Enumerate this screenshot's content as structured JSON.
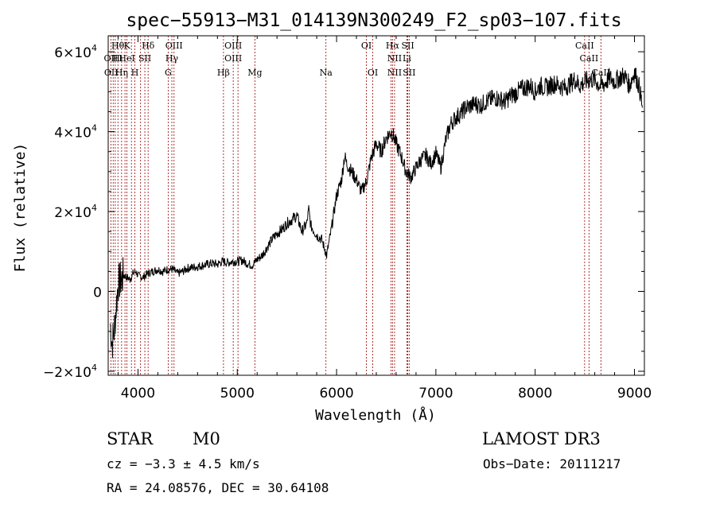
{
  "chart_data": {
    "type": "line",
    "title": "spec−55913−M31_014139N300249_F2_sp03−107.fits",
    "xlabel": "Wavelength (Å)",
    "ylabel": "Flux (relative)",
    "xlim": [
      3700,
      9100
    ],
    "ylim": [
      -21000,
      64000
    ],
    "x_ticks": [
      {
        "value": 4000,
        "label": "4000"
      },
      {
        "value": 5000,
        "label": "5000"
      },
      {
        "value": 6000,
        "label": "6000"
      },
      {
        "value": 7000,
        "label": "7000"
      },
      {
        "value": 8000,
        "label": "8000"
      },
      {
        "value": 9000,
        "label": "9000"
      }
    ],
    "y_ticks": [
      {
        "value": -20000,
        "mant": "−2×10",
        "exp": "4"
      },
      {
        "value": 0,
        "mant": "0",
        "exp": ""
      },
      {
        "value": 20000,
        "mant": "2×10",
        "exp": "4"
      },
      {
        "value": 40000,
        "mant": "4×10",
        "exp": "4"
      },
      {
        "value": 60000,
        "mant": "6×10",
        "exp": "4"
      }
    ],
    "series": [
      {
        "color": "#000000",
        "x": [
          3720,
          3740,
          3760,
          3780,
          3800,
          3830,
          3860,
          3890,
          3920,
          3950,
          3980,
          4000,
          4050,
          4100,
          4150,
          4200,
          4250,
          4300,
          4350,
          4400,
          4450,
          4500,
          4550,
          4600,
          4650,
          4700,
          4750,
          4800,
          4850,
          4900,
          4950,
          5000,
          5050,
          5100,
          5150,
          5200,
          5250,
          5300,
          5350,
          5400,
          5450,
          5500,
          5550,
          5600,
          5650,
          5700,
          5720,
          5740,
          5800,
          5850,
          5900,
          5950,
          6000,
          6050,
          6080,
          6100,
          6150,
          6200,
          6250,
          6300,
          6350,
          6400,
          6450,
          6500,
          6550,
          6580,
          6600,
          6650,
          6700,
          6750,
          6800,
          6850,
          6900,
          6950,
          7000,
          7050,
          7100,
          7150,
          7200,
          7250,
          7300,
          7350,
          7400,
          7450,
          7500,
          7550,
          7600,
          7650,
          7700,
          7750,
          7800,
          7850,
          7900,
          7950,
          8000,
          8050,
          8100,
          8150,
          8200,
          8250,
          8300,
          8350,
          8400,
          8450,
          8500,
          8550,
          8600,
          8650,
          8700,
          8750,
          8800,
          8850,
          8900,
          8950,
          9000,
          9050,
          9080
        ],
        "y": [
          -8000,
          -13000,
          -10000,
          -4000,
          2000,
          3000,
          4000,
          3500,
          3000,
          4500,
          5000,
          4000,
          3500,
          4500,
          5000,
          5500,
          5000,
          5500,
          5500,
          4500,
          5000,
          5800,
          6000,
          6200,
          6500,
          6800,
          7000,
          6800,
          7500,
          7200,
          7500,
          7500,
          7800,
          7000,
          6500,
          8000,
          9000,
          11000,
          13000,
          14500,
          15500,
          17000,
          18000,
          19000,
          15000,
          17000,
          20500,
          16500,
          14000,
          13000,
          9000,
          16000,
          24000,
          28000,
          34000,
          32000,
          30000,
          28000,
          25000,
          27500,
          33500,
          37000,
          35000,
          38500,
          40000,
          38500,
          37000,
          34000,
          30000,
          28500,
          31000,
          33000,
          34000,
          32000,
          34500,
          31000,
          38000,
          42000,
          43500,
          44500,
          46000,
          46500,
          47000,
          46500,
          47500,
          48000,
          48500,
          48000,
          47500,
          49000,
          49500,
          50500,
          51000,
          51500,
          50000,
          51500,
          51000,
          51500,
          52000,
          51500,
          51000,
          52000,
          53000,
          51500,
          52500,
          53000,
          53000,
          51500,
          52000,
          53500,
          52500,
          53500,
          54000,
          51500,
          55000,
          51000,
          46000
        ]
      }
    ],
    "lines": [
      {
        "x": 3727,
        "color": "#990000"
      },
      {
        "x": 3750,
        "color": "#990000"
      },
      {
        "x": 3771,
        "color": "#990000"
      },
      {
        "x": 3798,
        "color": "#990000"
      },
      {
        "x": 3835,
        "color": "#990000"
      },
      {
        "x": 3869,
        "color": "#990000"
      },
      {
        "x": 3889,
        "color": "#990000"
      },
      {
        "x": 3934,
        "color": "#990000"
      },
      {
        "x": 3969,
        "color": "#990000"
      },
      {
        "x": 4026,
        "color": "#990000"
      },
      {
        "x": 4069,
        "color": "#990000"
      },
      {
        "x": 4102,
        "color": "#990000"
      },
      {
        "x": 4304,
        "color": "#990000"
      },
      {
        "x": 4341,
        "color": "#990000"
      },
      {
        "x": 4363,
        "color": "#990000"
      },
      {
        "x": 4861,
        "color": "#990000"
      },
      {
        "x": 4959,
        "color": "#990000"
      },
      {
        "x": 5007,
        "color": "#990000"
      },
      {
        "x": 5177,
        "color": "#990000"
      },
      {
        "x": 5893,
        "color": "#990000"
      },
      {
        "x": 6300,
        "color": "#990000"
      },
      {
        "x": 6364,
        "color": "#990000"
      },
      {
        "x": 6548,
        "color": "#990000"
      },
      {
        "x": 6563,
        "color": "#990000"
      },
      {
        "x": 6584,
        "color": "#990000"
      },
      {
        "x": 6708,
        "color": "#990000"
      },
      {
        "x": 6717,
        "color": "#990000"
      },
      {
        "x": 6731,
        "color": "#990000"
      },
      {
        "x": 8498,
        "color": "#990000"
      },
      {
        "x": 8542,
        "color": "#990000"
      },
      {
        "x": 8662,
        "color": "#990000"
      }
    ],
    "annotations": [
      {
        "x": 3797,
        "row": 1,
        "text": "Hθ"
      },
      {
        "x": 3890,
        "row": 1,
        "text": "K"
      },
      {
        "x": 4102,
        "row": 1,
        "text": "Hδ"
      },
      {
        "x": 4363,
        "row": 1,
        "text": "OIII"
      },
      {
        "x": 4959,
        "row": 1,
        "text": "OIII"
      },
      {
        "x": 6300,
        "row": 1,
        "text": "OI"
      },
      {
        "x": 6563,
        "row": 1,
        "text": "Hα"
      },
      {
        "x": 6717,
        "row": 1,
        "text": "SII"
      },
      {
        "x": 8498,
        "row": 1,
        "text": "CaII"
      },
      {
        "x": 3727,
        "row": 2,
        "text": "OII"
      },
      {
        "x": 3798,
        "row": 2,
        "text": "Hι"
      },
      {
        "x": 3889,
        "row": 2,
        "text": "HeI"
      },
      {
        "x": 4069,
        "row": 2,
        "text": "SII"
      },
      {
        "x": 4341,
        "row": 2,
        "text": "Hγ"
      },
      {
        "x": 4959,
        "row": 2,
        "text": "OIII"
      },
      {
        "x": 6584,
        "row": 2,
        "text": "NII"
      },
      {
        "x": 6708,
        "row": 2,
        "text": "Li"
      },
      {
        "x": 8542,
        "row": 2,
        "text": "CaII"
      },
      {
        "x": 3730,
        "row": 3,
        "text": "OII"
      },
      {
        "x": 3835,
        "row": 3,
        "text": "Hη"
      },
      {
        "x": 3969,
        "row": 3,
        "text": "H"
      },
      {
        "x": 4304,
        "row": 3,
        "text": "G"
      },
      {
        "x": 4861,
        "row": 3,
        "text": "Hβ"
      },
      {
        "x": 5177,
        "row": 3,
        "text": "Mg"
      },
      {
        "x": 5893,
        "row": 3,
        "text": "Na"
      },
      {
        "x": 6364,
        "row": 3,
        "text": "OI"
      },
      {
        "x": 6584,
        "row": 3,
        "text": "NII"
      },
      {
        "x": 6731,
        "row": 3,
        "text": "SII"
      },
      {
        "x": 8662,
        "row": 3,
        "text": "CaII"
      }
    ]
  },
  "info": {
    "object_class": "STAR",
    "subclass": "M0",
    "survey": "LAMOST DR3",
    "cz": "cz = −3.3 ± 4.5 km/s",
    "obs_date": "Obs−Date: 20111217",
    "coords": "RA =  24.08576, DEC =  30.64108"
  }
}
